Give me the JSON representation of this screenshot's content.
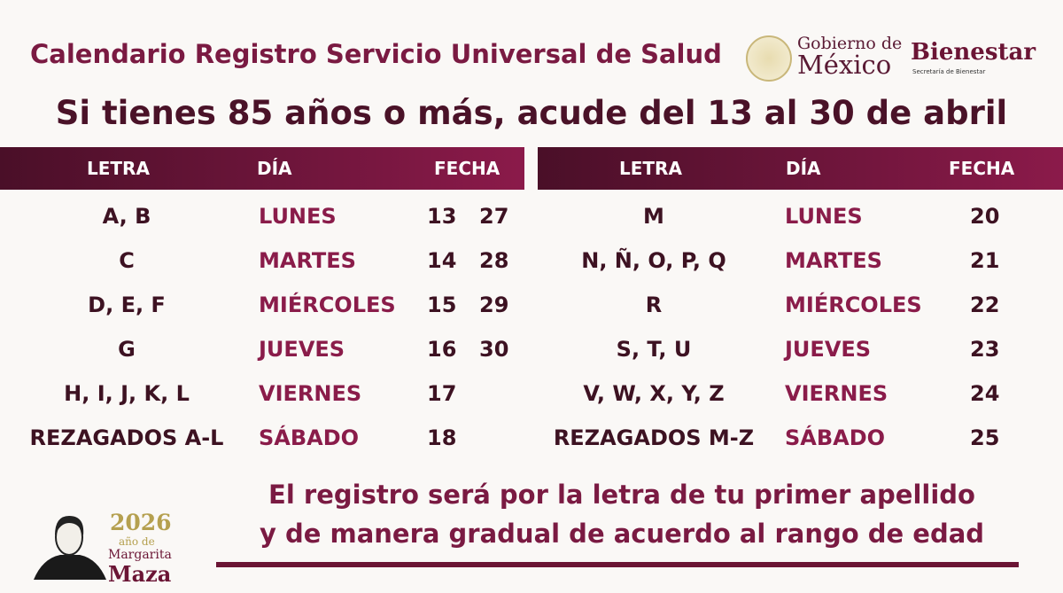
{
  "title": "Calendario Registro Servicio Universal de Salud",
  "subtitle": "Si tienes 85 años o más, acude del 13 al 30 de abril",
  "logos": {
    "gob_line1": "Gobierno de",
    "gob_line2": "México",
    "bienestar": "Bienestar",
    "bienestar_sub": "Secretaría de Bienestar"
  },
  "headers": {
    "letra": "LETRA",
    "dia": "DÍA",
    "fecha": "FECHA"
  },
  "left": [
    {
      "letra": "A, B",
      "dia": "LUNES",
      "f1": "13",
      "f2": "27"
    },
    {
      "letra": "C",
      "dia": "MARTES",
      "f1": "14",
      "f2": "28"
    },
    {
      "letra": "D, E, F",
      "dia": "MIÉRCOLES",
      "f1": "15",
      "f2": "29"
    },
    {
      "letra": "G",
      "dia": "JUEVES",
      "f1": "16",
      "f2": "30"
    },
    {
      "letra": "H, I, J, K, L",
      "dia": "VIERNES",
      "f1": "17",
      "f2": ""
    },
    {
      "letra": "REZAGADOS A-L",
      "dia": "SÁBADO",
      "f1": "18",
      "f2": ""
    }
  ],
  "right": [
    {
      "letra": "M",
      "dia": "LUNES",
      "f1": "20"
    },
    {
      "letra": "N, Ñ, O, P, Q",
      "dia": "MARTES",
      "f1": "21"
    },
    {
      "letra": "R",
      "dia": "MIÉRCOLES",
      "f1": "22"
    },
    {
      "letra": "S, T, U",
      "dia": "JUEVES",
      "f1": "23"
    },
    {
      "letra": "V, W, X, Y, Z",
      "dia": "VIERNES",
      "f1": "24"
    },
    {
      "letra": "REZAGADOS M-Z",
      "dia": "SÁBADO",
      "f1": "25"
    }
  ],
  "note_line1": "El registro será por la letra de tu primer apellido",
  "note_line2": "y de manera gradual de acuerdo al rango de edad",
  "badge": {
    "year": "2026",
    "ano": "año de",
    "name1": "Margarita",
    "name2": "Maza"
  }
}
